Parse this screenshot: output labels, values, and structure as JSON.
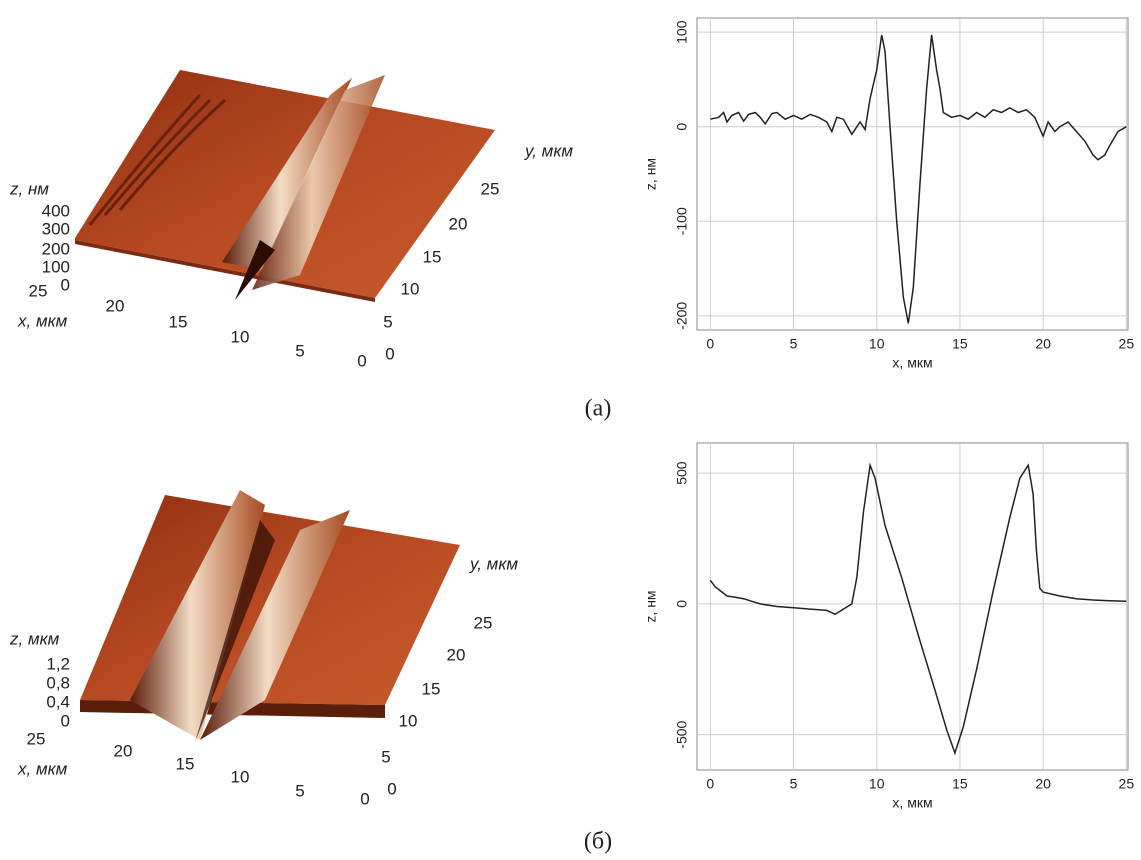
{
  "chart_data": [
    {
      "type": "line",
      "x_label": "x, мкм",
      "y_label": "z, нм",
      "x": [
        0,
        0.5,
        0.8,
        1,
        1.3,
        1.7,
        2,
        2.3,
        2.7,
        3,
        3.3,
        3.7,
        4,
        4.5,
        5,
        5.5,
        6,
        6.5,
        7,
        7.3,
        7.6,
        8,
        8.5,
        9,
        9.3,
        9.6,
        10,
        10.3,
        10.5,
        10.8,
        11.2,
        11.6,
        11.9,
        12.2,
        12.6,
        13,
        13.3,
        13.6,
        13.8,
        14,
        14.5,
        15,
        15.5,
        16,
        16.5,
        17,
        17.5,
        18,
        18.5,
        19,
        19.5,
        20,
        20.3,
        20.7,
        21,
        21.5,
        22,
        22.5,
        23,
        23.3,
        23.7,
        24,
        24.5,
        25
      ],
      "series": [
        {
          "color": "#222222",
          "values": [
            8,
            10,
            15,
            5,
            12,
            15,
            6,
            13,
            15,
            10,
            3,
            14,
            15,
            8,
            12,
            8,
            13,
            10,
            5,
            -5,
            10,
            8,
            -8,
            5,
            -3,
            30,
            60,
            97,
            80,
            0,
            -100,
            -180,
            -208,
            -170,
            -60,
            40,
            97,
            60,
            40,
            15,
            10,
            12,
            8,
            15,
            10,
            18,
            15,
            20,
            15,
            18,
            10,
            -10,
            5,
            -5,
            0,
            5,
            -5,
            -15,
            -30,
            -35,
            -30,
            -20,
            -5,
            0
          ]
        }
      ],
      "xlim": [
        -0.8,
        25.1
      ],
      "ylim": [
        -215,
        115
      ],
      "xticks": [
        0,
        5,
        10,
        15,
        20,
        25
      ],
      "yticks": [
        -200,
        -100,
        0,
        100
      ],
      "grid": true
    },
    {
      "type": "line",
      "x_label": "x, мкм",
      "y_label": "z, нм",
      "x": [
        0,
        0.3,
        0.7,
        1,
        1.5,
        2,
        2.5,
        3,
        4,
        5,
        6,
        7,
        7.5,
        8,
        8.5,
        8.8,
        9.2,
        9.6,
        9.9,
        10.5,
        11.5,
        12.5,
        13.5,
        14.2,
        14.7,
        15.2,
        16,
        17,
        18,
        18.6,
        19.1,
        19.4,
        19.6,
        19.8,
        20,
        21,
        22,
        23,
        24,
        25
      ],
      "series": [
        {
          "color": "#222222",
          "values": [
            90,
            65,
            45,
            30,
            25,
            20,
            10,
            0,
            -10,
            -15,
            -20,
            -25,
            -40,
            -20,
            0,
            100,
            350,
            530,
            480,
            300,
            100,
            -120,
            -330,
            -480,
            -570,
            -470,
            -250,
            50,
            330,
            480,
            530,
            420,
            200,
            60,
            45,
            30,
            20,
            15,
            12,
            10
          ]
        }
      ],
      "xlim": [
        -0.8,
        25.1
      ],
      "ylim": [
        -635,
        615
      ],
      "xticks": [
        0,
        5,
        10,
        15,
        20,
        25
      ],
      "yticks": [
        -500,
        0,
        500
      ],
      "grid": true
    }
  ],
  "panels": [
    {
      "z_label": "z, нм",
      "z_ticks": [
        400,
        300,
        200,
        100,
        0
      ],
      "x_label": "x, мкм",
      "x_ticks": [
        25,
        20,
        15,
        10,
        5,
        0
      ],
      "y_label": "y, мкм",
      "y_ticks": [
        0,
        5,
        10,
        15,
        20,
        25
      ],
      "caption": "(а)"
    },
    {
      "z_label": "z, мкм",
      "z_ticks": [
        {
          "value": 1.2,
          "label": "1,2"
        },
        {
          "value": 0.8,
          "label": "0,8"
        },
        {
          "value": 0.4,
          "label": "0,4"
        },
        0
      ],
      "x_label": "x, мкм",
      "x_ticks": [
        25,
        20,
        15,
        10,
        5,
        0
      ],
      "y_label": "y, мкм",
      "y_ticks": [
        0,
        5,
        10,
        15,
        20,
        25
      ],
      "caption": "(б)"
    }
  ]
}
